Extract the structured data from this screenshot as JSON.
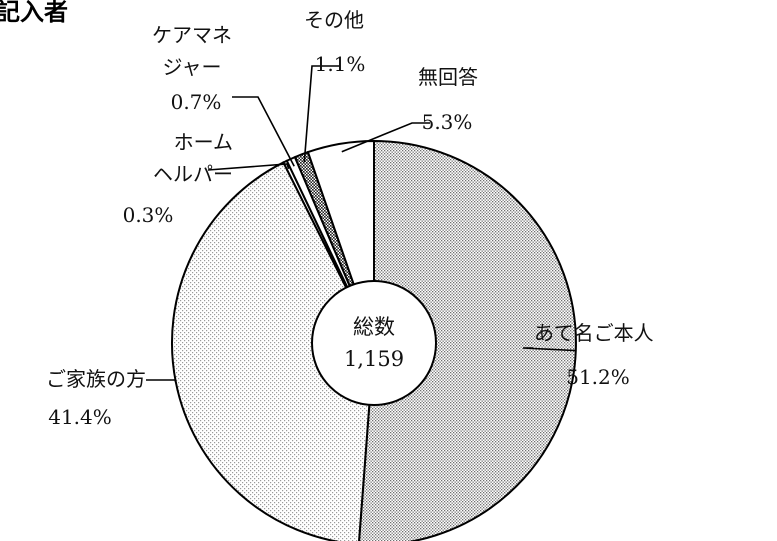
{
  "chart_data": {
    "type": "pie",
    "title": "記入者",
    "center_label": "総数",
    "total": "1,159",
    "slices": [
      {
        "name": "あて名ご本人",
        "value": 51.2,
        "pct": "51.2%",
        "fill": "dots-dense"
      },
      {
        "name": "ご家族の方",
        "value": 41.4,
        "pct": "41.4%",
        "fill": "dots-light"
      },
      {
        "name": "ホームヘルパー",
        "name_lines": [
          "ホーム",
          "ヘルパー"
        ],
        "value": 0.3,
        "pct": "0.3%",
        "fill": "white"
      },
      {
        "name": "ケアマネジャー",
        "name_lines": [
          "ケアマネ",
          "ジャー"
        ],
        "value": 0.7,
        "pct": "0.7%",
        "fill": "white"
      },
      {
        "name": "その他",
        "value": 1.1,
        "pct": "1.1%",
        "fill": "hatch"
      },
      {
        "name": "無回答",
        "value": 5.3,
        "pct": "5.3%",
        "fill": "white"
      }
    ]
  }
}
